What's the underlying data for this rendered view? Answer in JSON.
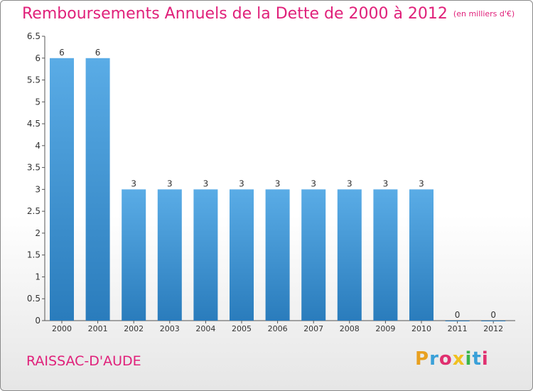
{
  "header": {
    "title": "Remboursements Annuels de la Dette de 2000 à 2012",
    "units": "(en milliers d'€)"
  },
  "footer": {
    "city": "RAISSAC-D'AUDE",
    "brand": "Proxiti",
    "brand_letter_colors": [
      "#e8a020",
      "#3aa0d8",
      "#e03070",
      "#f0c020",
      "#39b54a",
      "#3aa0d8",
      "#e03070"
    ]
  },
  "colors": {
    "title": "#e0207a",
    "bar_light": "#5aace6",
    "bar_dark": "#2a7cbc"
  },
  "chart_data": {
    "type": "bar",
    "title": "Remboursements Annuels de la Dette de 2000 à 2012",
    "subtitle": "(en milliers d'€)",
    "categories": [
      "2000",
      "2001",
      "2002",
      "2003",
      "2004",
      "2005",
      "2006",
      "2007",
      "2008",
      "2009",
      "2010",
      "2011",
      "2012"
    ],
    "values": [
      6,
      6,
      3,
      3,
      3,
      3,
      3,
      3,
      3,
      3,
      3,
      0,
      0
    ],
    "data_labels": [
      "6",
      "6",
      "3",
      "3",
      "3",
      "3",
      "3",
      "3",
      "3",
      "3",
      "3",
      "0",
      "0"
    ],
    "ylim": [
      0,
      6.5
    ],
    "yticks": [
      0,
      0.5,
      1,
      1.5,
      2,
      2.5,
      3,
      3.5,
      4,
      4.5,
      5,
      5.5,
      6,
      6.5
    ],
    "ytick_labels": [
      "0",
      "0.5",
      "1",
      "1.5",
      "2",
      "2.5",
      "3",
      "3.5",
      "4",
      "4.5",
      "5",
      "5.5",
      "6",
      "6.5"
    ],
    "grid": false,
    "legend": "none"
  }
}
